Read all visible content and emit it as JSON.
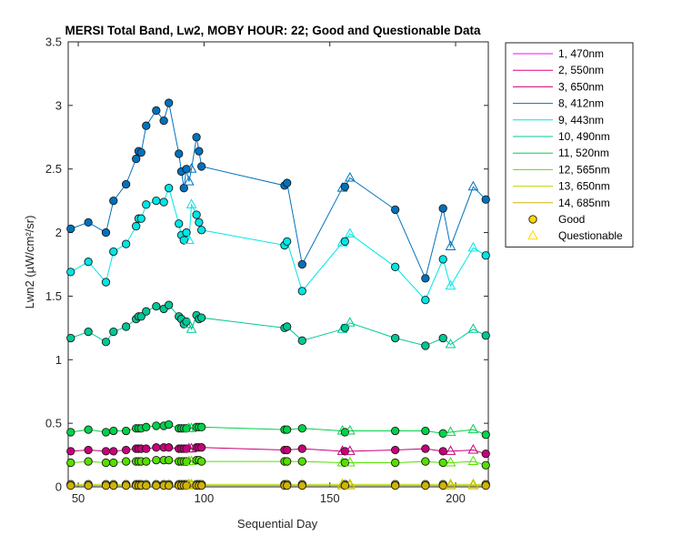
{
  "chart_data": {
    "type": "line",
    "title": "MERSI Total Band, Lw2, MOBY HOUR: 22;  Good and Questionable Data",
    "xlabel": "Sequential Day",
    "ylabel": "Lwn2 (µW/cm²/sr)",
    "xlim": [
      46,
      213
    ],
    "ylim": [
      0,
      3.5
    ],
    "xticks": [
      50,
      100,
      150,
      200
    ],
    "yticks": [
      0,
      0.5,
      1,
      1.5,
      2,
      2.5,
      3,
      3.5
    ],
    "grid": false,
    "legend_position": "outside-right",
    "x": [
      47,
      54,
      61,
      64,
      69,
      73,
      74,
      75,
      77,
      81,
      84,
      86,
      90,
      91,
      92,
      93,
      94,
      95,
      97,
      98,
      99,
      132,
      133,
      139,
      155,
      156,
      158,
      176,
      188,
      195,
      198,
      207,
      212
    ],
    "series": [
      {
        "name": "1, 470nm",
        "color": "#ff00ff",
        "values": [
          null,
          null,
          null,
          null,
          null,
          null,
          null,
          null,
          null,
          null,
          null,
          null,
          null,
          null,
          null,
          null,
          null,
          null,
          null,
          null,
          null,
          null,
          null,
          null,
          null,
          null,
          null,
          null,
          null,
          null,
          null,
          null,
          null
        ]
      },
      {
        "name": "2, 550nm",
        "color": "#e6007e",
        "values": [
          null,
          null,
          null,
          null,
          null,
          null,
          null,
          null,
          null,
          null,
          null,
          null,
          null,
          null,
          null,
          null,
          null,
          null,
          null,
          null,
          null,
          null,
          null,
          null,
          null,
          null,
          null,
          null,
          null,
          null,
          null,
          null,
          null
        ]
      },
      {
        "name": "3, 650nm",
        "color": "#c8007a",
        "values": [
          0.28,
          0.29,
          0.28,
          0.28,
          0.29,
          0.3,
          0.3,
          0.3,
          0.3,
          0.31,
          0.31,
          0.31,
          0.3,
          0.3,
          0.3,
          0.3,
          0.3,
          0.3,
          0.31,
          0.31,
          0.31,
          0.29,
          0.29,
          0.3,
          0.28,
          0.28,
          0.28,
          0.29,
          0.3,
          0.28,
          0.28,
          0.29,
          0.26
        ]
      },
      {
        "name": "8, 412nm",
        "color": "#0072bd",
        "values": [
          2.03,
          2.08,
          2.0,
          2.25,
          2.38,
          2.58,
          2.64,
          2.63,
          2.84,
          2.96,
          2.88,
          3.02,
          2.62,
          2.48,
          2.35,
          2.5,
          2.4,
          2.5,
          2.75,
          2.64,
          2.52,
          2.37,
          2.39,
          1.75,
          2.35,
          2.36,
          2.43,
          2.18,
          1.64,
          2.19,
          1.89,
          2.36,
          2.26
        ]
      },
      {
        "name": "9, 443nm",
        "color": "#00e6e6",
        "values": [
          1.69,
          1.77,
          1.61,
          1.85,
          1.91,
          2.05,
          2.11,
          2.11,
          2.22,
          2.25,
          2.24,
          2.35,
          2.07,
          1.98,
          1.94,
          2.0,
          1.94,
          2.22,
          2.14,
          2.08,
          2.02,
          1.9,
          1.93,
          1.54,
          1.92,
          1.93,
          1.99,
          1.73,
          1.47,
          1.79,
          1.58,
          1.88,
          1.82
        ]
      },
      {
        "name": "10, 490nm",
        "color": "#00c896",
        "values": [
          1.17,
          1.22,
          1.14,
          1.22,
          1.26,
          1.32,
          1.34,
          1.34,
          1.38,
          1.42,
          1.4,
          1.43,
          1.34,
          1.32,
          1.28,
          1.3,
          1.28,
          1.24,
          1.35,
          1.32,
          1.33,
          1.25,
          1.26,
          1.15,
          1.24,
          1.25,
          1.29,
          1.17,
          1.11,
          1.17,
          1.12,
          1.24,
          1.19
        ]
      },
      {
        "name": "11, 520nm",
        "color": "#00d24a",
        "values": [
          0.43,
          0.45,
          0.43,
          0.44,
          0.44,
          0.46,
          0.46,
          0.46,
          0.47,
          0.48,
          0.48,
          0.49,
          0.46,
          0.46,
          0.46,
          0.46,
          0.46,
          0.46,
          0.47,
          0.47,
          0.47,
          0.45,
          0.45,
          0.46,
          0.44,
          0.43,
          0.44,
          0.44,
          0.44,
          0.42,
          0.43,
          0.45,
          0.41
        ]
      },
      {
        "name": "12, 565nm",
        "color": "#55e000",
        "values": [
          0.19,
          0.2,
          0.19,
          0.19,
          0.2,
          0.2,
          0.2,
          0.2,
          0.2,
          0.21,
          0.21,
          0.21,
          0.2,
          0.2,
          0.2,
          0.2,
          0.2,
          0.2,
          0.21,
          0.21,
          0.2,
          0.2,
          0.2,
          0.2,
          0.19,
          0.19,
          0.19,
          0.19,
          0.2,
          0.19,
          0.19,
          0.2,
          0.17
        ]
      },
      {
        "name": "13, 650nm",
        "color": "#b4dc00",
        "values": [
          0.02,
          0.02,
          0.02,
          0.02,
          0.02,
          0.02,
          0.02,
          0.02,
          0.02,
          0.02,
          0.02,
          0.02,
          0.02,
          0.02,
          0.02,
          0.02,
          0.02,
          0.02,
          0.02,
          0.02,
          0.02,
          0.02,
          0.02,
          0.02,
          0.02,
          0.02,
          0.02,
          0.02,
          0.02,
          0.02,
          0.02,
          0.02,
          0.02
        ]
      },
      {
        "name": "14, 685nm",
        "color": "#d2b400",
        "values": [
          0.01,
          0.01,
          0.01,
          0.01,
          0.01,
          0.01,
          0.01,
          0.01,
          0.01,
          0.01,
          0.01,
          0.01,
          0.01,
          0.01,
          0.01,
          0.01,
          0.01,
          0.01,
          0.01,
          0.01,
          0.01,
          0.01,
          0.01,
          0.01,
          0.01,
          0.01,
          0.01,
          0.01,
          0.01,
          0.01,
          0.01,
          0.01,
          0.01
        ]
      }
    ],
    "flags": [
      "good",
      "good",
      "good",
      "good",
      "good",
      "good",
      "good",
      "good",
      "good",
      "good",
      "good",
      "good",
      "good",
      "good",
      "good",
      "good",
      "questionable",
      "questionable",
      "good",
      "good",
      "good",
      "good",
      "good",
      "good",
      "questionable",
      "good",
      "questionable",
      "good",
      "good",
      "good",
      "questionable",
      "questionable",
      "good"
    ],
    "marker_legend": [
      {
        "name": "Good",
        "marker": "circle",
        "color": "#ffd700"
      },
      {
        "name": "Questionable",
        "marker": "triangle",
        "color": "#ffd700"
      }
    ]
  }
}
